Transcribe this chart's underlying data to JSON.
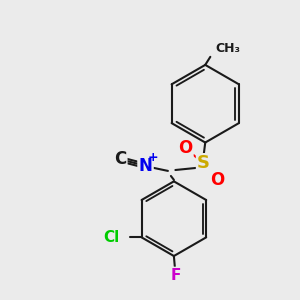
{
  "bg_color": "#ebebeb",
  "bond_color": "#1a1a1a",
  "bond_width": 1.5,
  "atom_colors": {
    "C": "#1a1a1a",
    "N": "#0000ee",
    "S": "#ccaa00",
    "O": "#ff0000",
    "Cl": "#00cc00",
    "F": "#cc00cc"
  },
  "figsize": [
    3.0,
    3.0
  ],
  "dpi": 100
}
